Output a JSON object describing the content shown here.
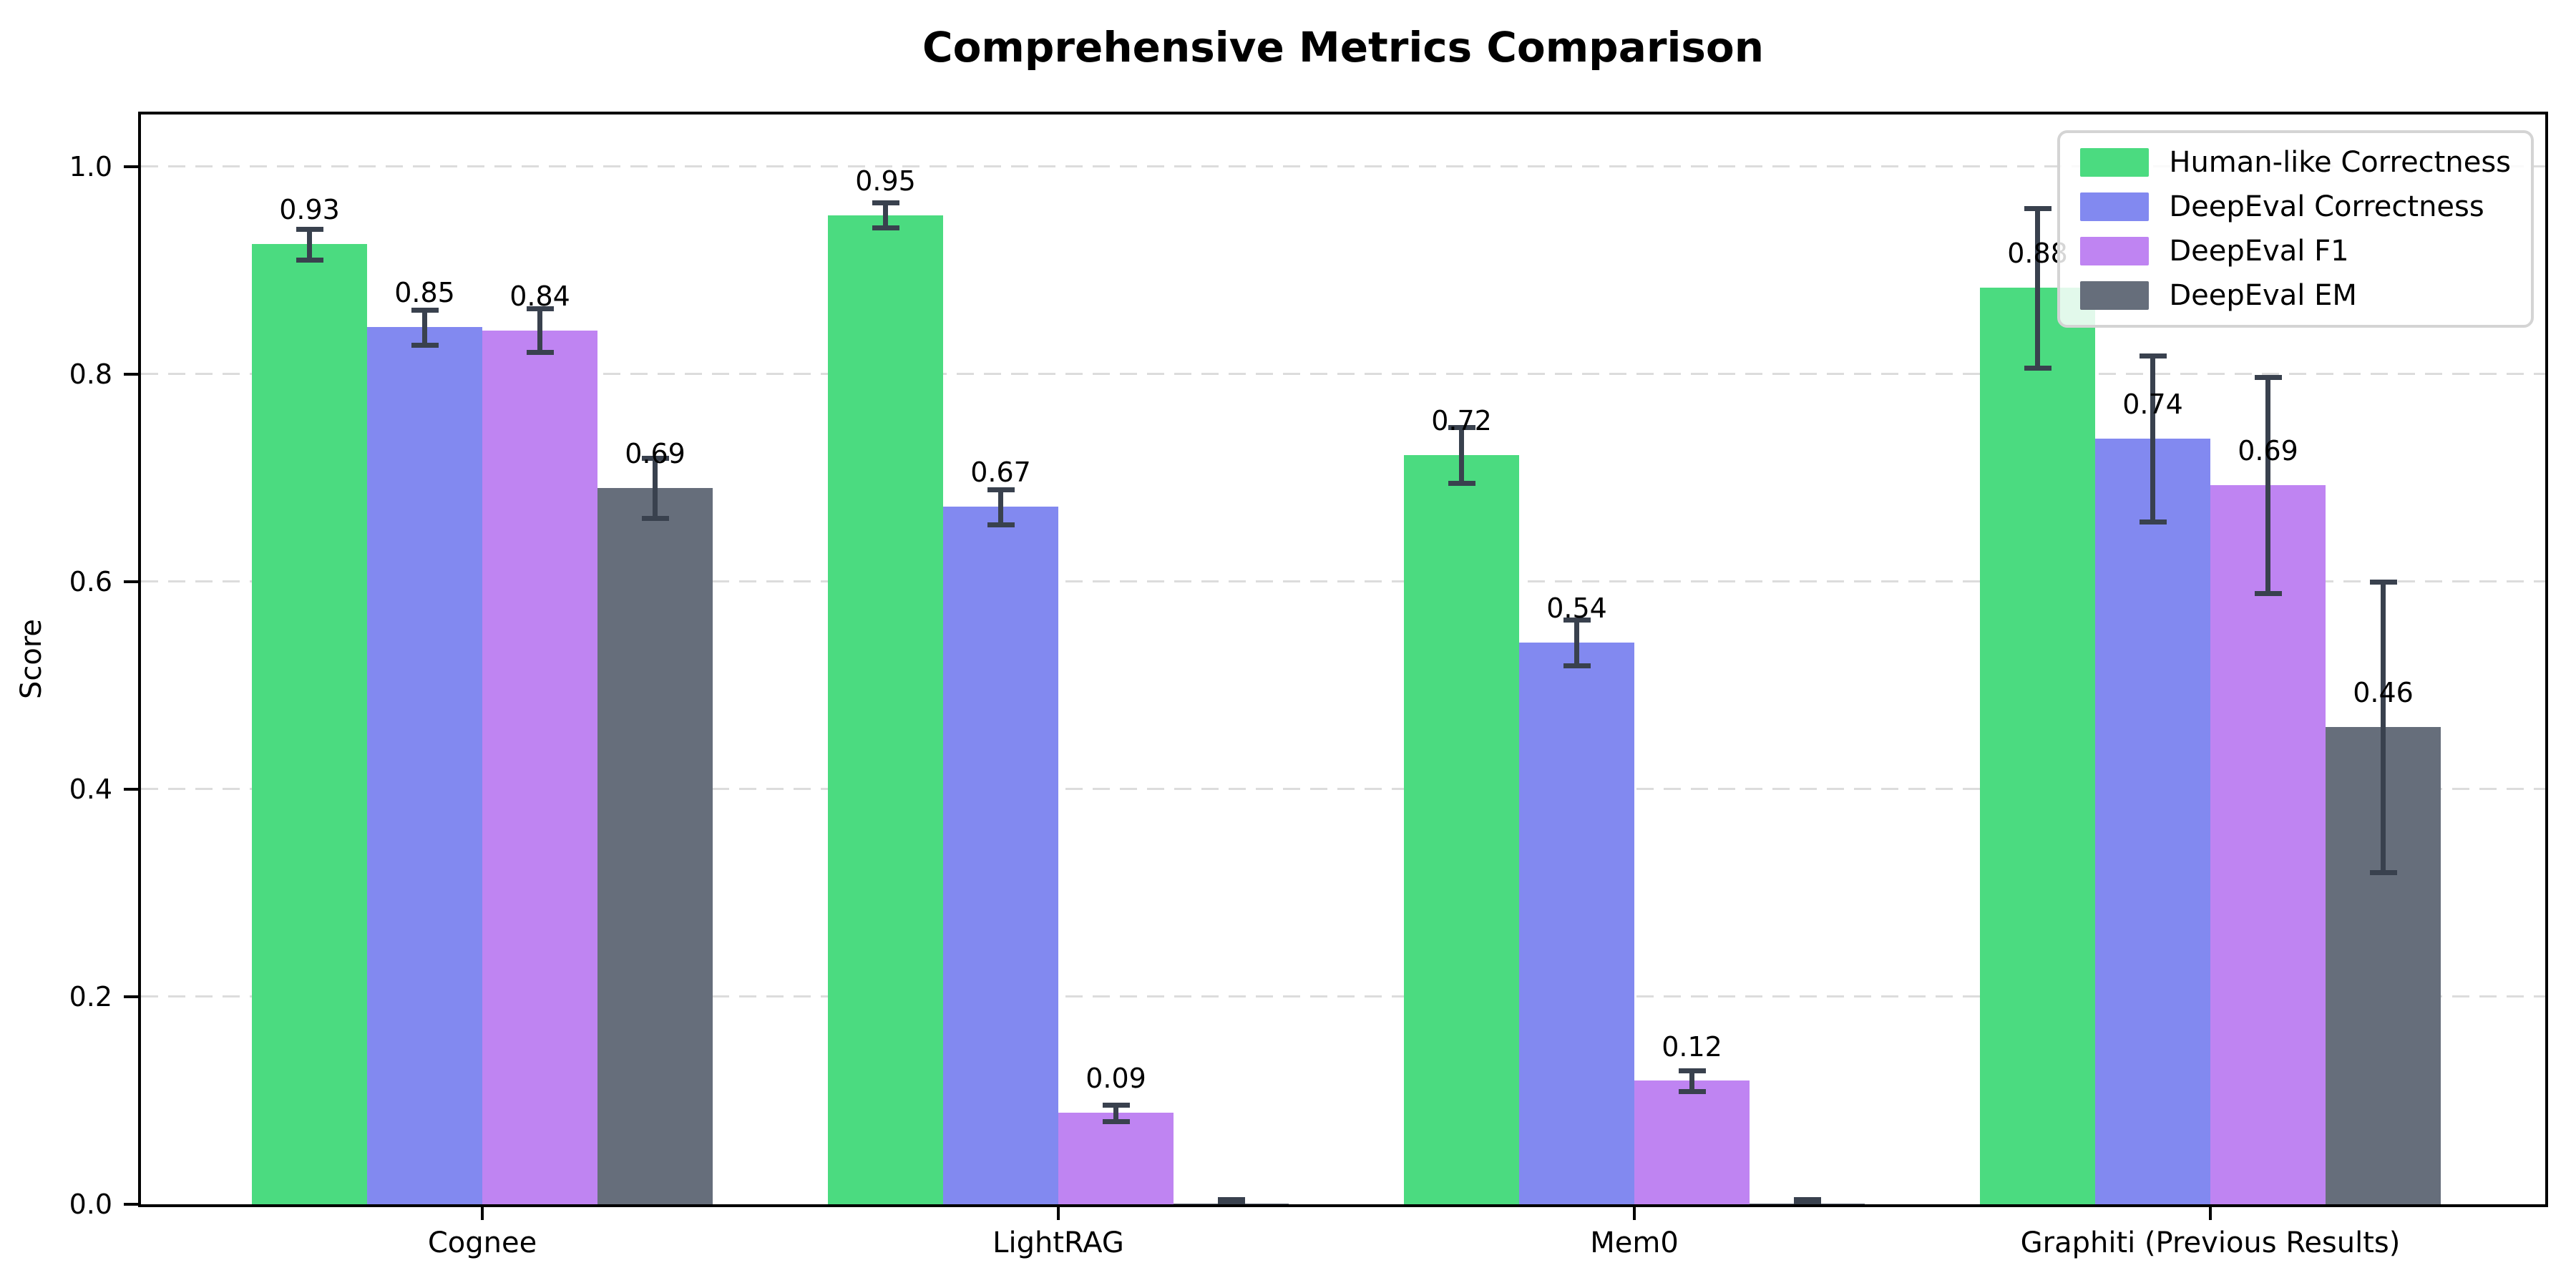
{
  "chart_data": {
    "type": "bar",
    "title": "Comprehensive Metrics Comparison",
    "ylabel": "Score",
    "xlabel": "",
    "categories": [
      "Cognee",
      "LightRAG",
      "Mem0",
      "Graphiti (Previous Results)"
    ],
    "series": [
      {
        "name": "Human-like Correctness",
        "color": "#4bdb80",
        "values": [
          0.925,
          0.953,
          0.722,
          0.883
        ],
        "errors": [
          0.015,
          0.012,
          0.027,
          0.077
        ],
        "labels": [
          "0.93",
          "0.95",
          "0.72",
          "0.88"
        ]
      },
      {
        "name": "DeepEval Correctness",
        "color": "#8289f0",
        "values": [
          0.845,
          0.672,
          0.541,
          0.738
        ],
        "errors": [
          0.017,
          0.017,
          0.022,
          0.08
        ],
        "labels": [
          "0.85",
          "0.67",
          "0.54",
          "0.74"
        ]
      },
      {
        "name": "DeepEval F1",
        "color": "#bf84f2",
        "values": [
          0.842,
          0.088,
          0.119,
          0.693
        ],
        "errors": [
          0.021,
          0.008,
          0.01,
          0.104
        ],
        "labels": [
          "0.84",
          "0.09",
          "0.12",
          "0.69"
        ]
      },
      {
        "name": "DeepEval EM",
        "color": "#666e7b",
        "values": [
          0.69,
          0.001,
          0.001,
          0.46
        ],
        "errors": [
          0.029,
          0.004,
          0.004,
          0.14
        ],
        "labels": [
          "0.69",
          null,
          null,
          "0.46"
        ]
      }
    ],
    "ylim": [
      0,
      1.05
    ],
    "yticks": [
      "0.0",
      "0.2",
      "0.4",
      "0.6",
      "0.8",
      "1.0"
    ],
    "grid": "horizontal-dashed",
    "legend_position": "upper-right",
    "error_bar_color": "#39414e",
    "axis_color": "#000000",
    "background": "#ffffff"
  }
}
